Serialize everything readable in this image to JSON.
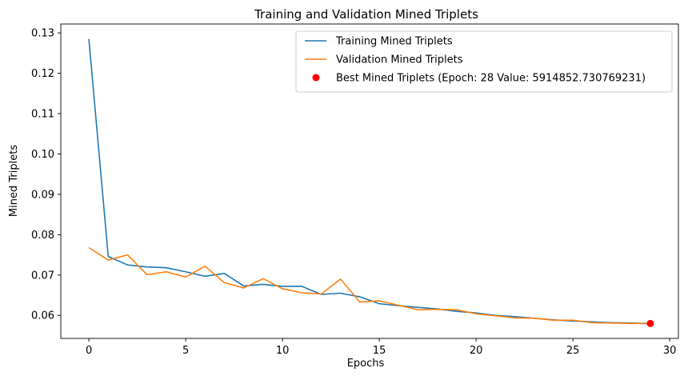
{
  "chart_data": {
    "type": "line",
    "title": "Training and Validation Mined Triplets",
    "xlabel": "Epochs",
    "ylabel": "Mined Triplets",
    "xlim": [
      -1.45,
      30.45
    ],
    "ylim": [
      0.0543,
      0.1322
    ],
    "xticks": [
      0,
      5,
      10,
      15,
      20,
      25,
      30
    ],
    "yticks": [
      0.06,
      0.07,
      0.08,
      0.09,
      0.1,
      0.11,
      0.12,
      0.13
    ],
    "ytick_labels": [
      "0.06",
      "0.07",
      "0.08",
      "0.09",
      "0.10",
      "0.11",
      "0.12",
      "0.13"
    ],
    "grid": false,
    "legend_position": "upper right",
    "x": [
      0,
      1,
      2,
      3,
      4,
      5,
      6,
      7,
      8,
      9,
      10,
      11,
      12,
      13,
      14,
      15,
      16,
      17,
      18,
      19,
      20,
      21,
      22,
      23,
      24,
      25,
      26,
      27,
      28,
      29
    ],
    "series": [
      {
        "name": "Training Mined Triplets",
        "color": "#1f77b4",
        "values": [
          0.1285,
          0.0746,
          0.0725,
          0.072,
          0.0718,
          0.0708,
          0.0697,
          0.0704,
          0.0673,
          0.0677,
          0.0672,
          0.0672,
          0.0652,
          0.0655,
          0.0646,
          0.0629,
          0.0624,
          0.062,
          0.0616,
          0.061,
          0.0606,
          0.06,
          0.0597,
          0.0593,
          0.0589,
          0.0586,
          0.0584,
          0.0582,
          0.0581,
          0.058
        ]
      },
      {
        "name": "Validation Mined Triplets",
        "color": "#ff7f0e",
        "values": [
          0.0768,
          0.0737,
          0.075,
          0.0701,
          0.0708,
          0.0695,
          0.0722,
          0.0681,
          0.0668,
          0.0691,
          0.0666,
          0.0656,
          0.0653,
          0.069,
          0.0633,
          0.0636,
          0.0625,
          0.0614,
          0.0615,
          0.0614,
          0.0604,
          0.0599,
          0.0594,
          0.0593,
          0.0588,
          0.0588,
          0.0582,
          0.0581,
          0.058,
          0.058
        ]
      }
    ],
    "highlight": {
      "name": "Best Mined Triplets (Epoch: 28 Value: 5914852.730769231)",
      "color": "#ff0000",
      "x": 29,
      "y": 0.058
    }
  }
}
